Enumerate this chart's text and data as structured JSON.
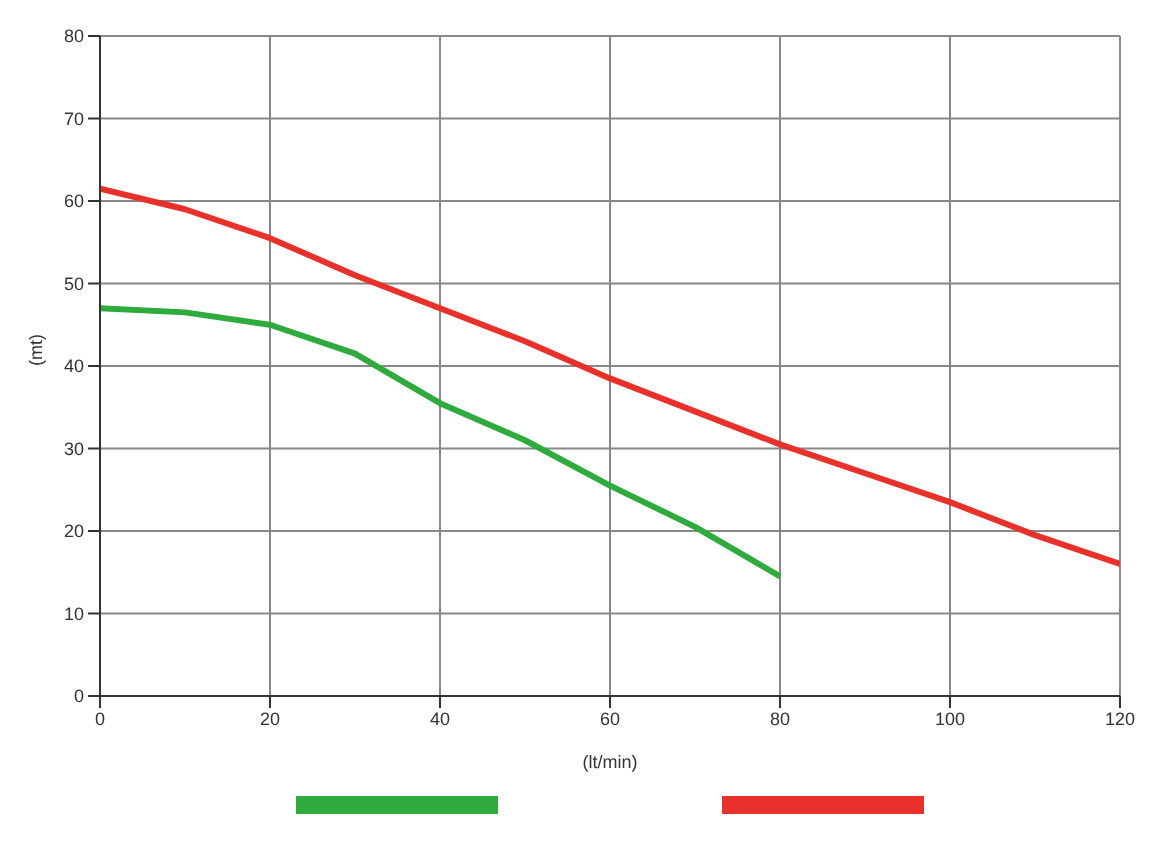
{
  "chart_data": {
    "type": "line",
    "xlabel": "(lt/min)",
    "ylabel": "(mt)",
    "xlim": [
      0,
      120
    ],
    "xticks": [
      0,
      20,
      40,
      60,
      80,
      100,
      120
    ],
    "ylim": [
      0,
      80
    ],
    "yticks": [
      0,
      10,
      20,
      30,
      40,
      50,
      60,
      70,
      80
    ],
    "grid": true,
    "marker": "none",
    "line_style": "solid",
    "series": [
      {
        "color": "#2eab3c",
        "x": [
          0,
          10,
          20,
          30,
          40,
          50,
          60,
          70,
          80
        ],
        "values": [
          47,
          46.5,
          45,
          41.5,
          35.5,
          31,
          25.5,
          20.5,
          14.5
        ]
      },
      {
        "color": "#e8312b",
        "x": [
          0,
          10,
          20,
          30,
          40,
          50,
          60,
          70,
          80,
          90,
          100,
          110,
          120
        ],
        "values": [
          61.5,
          59,
          55.5,
          51,
          47,
          43,
          38.5,
          34.5,
          30.5,
          27,
          23.5,
          19.5,
          16
        ]
      }
    ]
  }
}
